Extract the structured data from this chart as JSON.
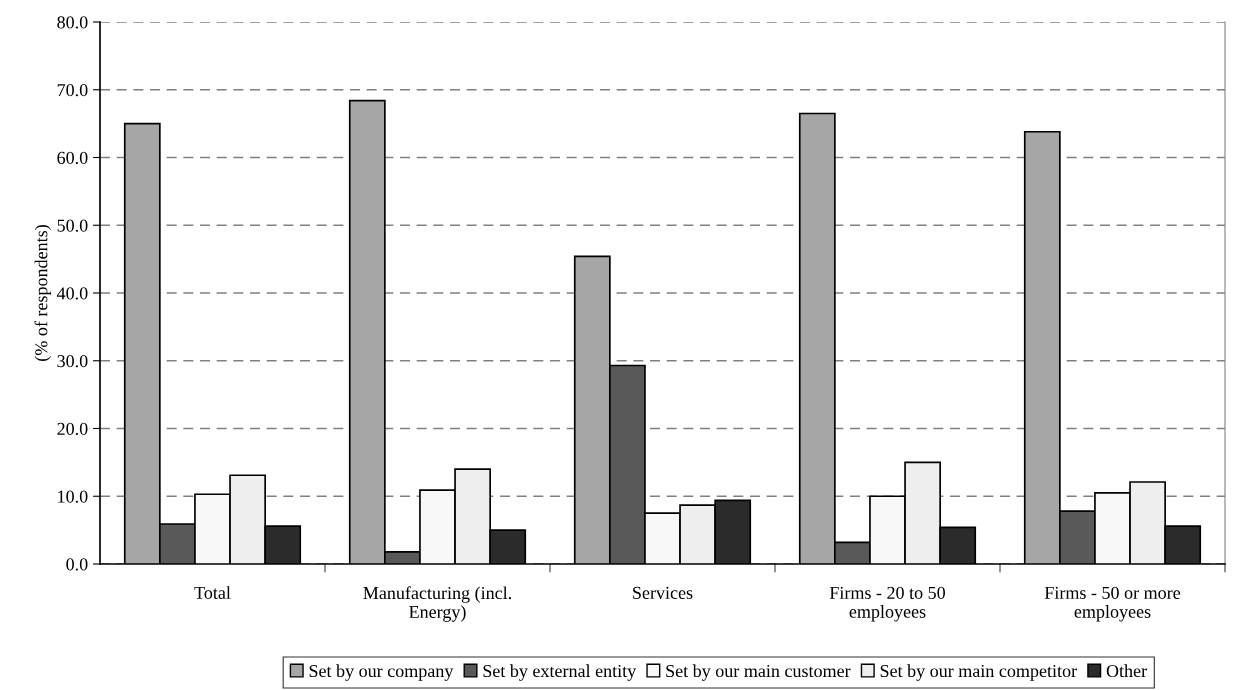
{
  "chart_data": {
    "type": "bar",
    "ylabel": "(% of respondents)",
    "categories": [
      "Total",
      "Manufacturing (incl.\nEnergy)",
      "Services",
      "Firms - 20 to 50\nemployees",
      "Firms - 50 or more\nemployees"
    ],
    "series": [
      {
        "name": "Set by our company",
        "color": "#a6a6a6",
        "values": [
          65.0,
          68.4,
          45.4,
          66.5,
          63.8
        ]
      },
      {
        "name": "Set by external entity",
        "color": "#595959",
        "values": [
          5.9,
          1.8,
          29.3,
          3.2,
          7.8
        ]
      },
      {
        "name": "Set by our main customer",
        "color": "#f8f8f8",
        "values": [
          10.3,
          10.9,
          7.5,
          10.0,
          10.5
        ]
      },
      {
        "name": "Set by our main competitor",
        "color": "#eeeeee",
        "values": [
          13.1,
          14.0,
          8.7,
          15.0,
          12.1
        ]
      },
      {
        "name": "Other",
        "color": "#2b2b2b",
        "values": [
          5.6,
          5.0,
          9.4,
          5.4,
          5.6
        ]
      }
    ],
    "ylim": [
      0,
      80
    ],
    "yticks": [
      {
        "value": 0,
        "label": "0.0"
      },
      {
        "value": 10,
        "label": "10.0"
      },
      {
        "value": 20,
        "label": "20.0"
      },
      {
        "value": 30,
        "label": "30.0"
      },
      {
        "value": 40,
        "label": "40.0"
      },
      {
        "value": 50,
        "label": "50.0"
      },
      {
        "value": 60,
        "label": "60.0"
      },
      {
        "value": 70,
        "label": "70.0"
      },
      {
        "value": 80,
        "label": "80.0"
      }
    ],
    "grid": "y",
    "legend": "bottom"
  }
}
